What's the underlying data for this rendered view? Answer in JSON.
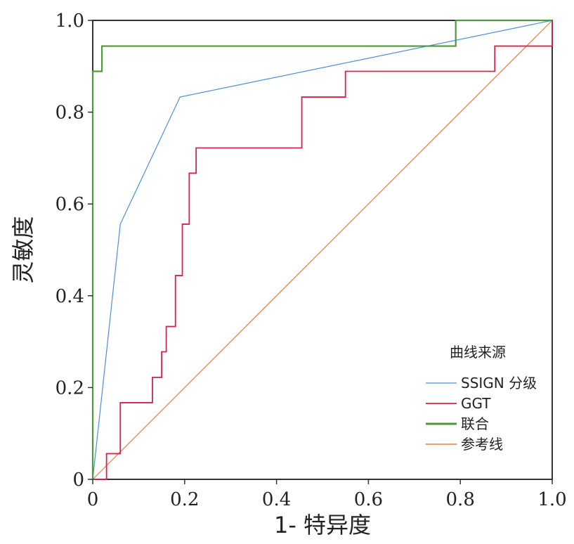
{
  "chart_data": {
    "type": "line",
    "xlabel": "1- 特异度",
    "ylabel": "灵敏度",
    "xlim": [
      0,
      1
    ],
    "ylim": [
      0,
      1
    ],
    "x_ticks": [
      "0",
      "0.2",
      "0.4",
      "0.6",
      "0.8",
      "1.0"
    ],
    "y_ticks": [
      "0",
      "0.2",
      "0.4",
      "0.6",
      "0.8",
      "1.0"
    ],
    "grid": false,
    "legend": {
      "title": "曲线来源",
      "placement": "lower-right"
    },
    "series": [
      {
        "name": "SSIGN 分级",
        "color": "#4a90d9",
        "points": [
          [
            0,
            0
          ],
          [
            0.06,
            0.556
          ],
          [
            0.19,
            0.833
          ],
          [
            1.0,
            1.0
          ]
        ]
      },
      {
        "name": "GGT",
        "color": "#d6234a",
        "points": [
          [
            0,
            0
          ],
          [
            0.03,
            0
          ],
          [
            0.03,
            0.056
          ],
          [
            0.06,
            0.056
          ],
          [
            0.06,
            0.167
          ],
          [
            0.13,
            0.167
          ],
          [
            0.13,
            0.222
          ],
          [
            0.15,
            0.222
          ],
          [
            0.15,
            0.278
          ],
          [
            0.16,
            0.278
          ],
          [
            0.16,
            0.333
          ],
          [
            0.18,
            0.333
          ],
          [
            0.18,
            0.444
          ],
          [
            0.195,
            0.444
          ],
          [
            0.195,
            0.556
          ],
          [
            0.21,
            0.556
          ],
          [
            0.21,
            0.667
          ],
          [
            0.225,
            0.667
          ],
          [
            0.225,
            0.722
          ],
          [
            0.455,
            0.722
          ],
          [
            0.455,
            0.833
          ],
          [
            0.55,
            0.833
          ],
          [
            0.55,
            0.889
          ],
          [
            0.875,
            0.889
          ],
          [
            0.875,
            0.944
          ],
          [
            1.0,
            0.944
          ],
          [
            1.0,
            1.0
          ]
        ]
      },
      {
        "name": "联合",
        "color": "#4e9a3a",
        "points": [
          [
            0,
            0
          ],
          [
            0,
            0.889
          ],
          [
            0.02,
            0.889
          ],
          [
            0.02,
            0.944
          ],
          [
            0.79,
            0.944
          ],
          [
            0.79,
            1.0
          ],
          [
            1.0,
            1.0
          ]
        ]
      },
      {
        "name": "参考线",
        "color": "#ef7a3c",
        "points": [
          [
            0,
            0
          ],
          [
            1,
            1
          ]
        ]
      }
    ]
  }
}
